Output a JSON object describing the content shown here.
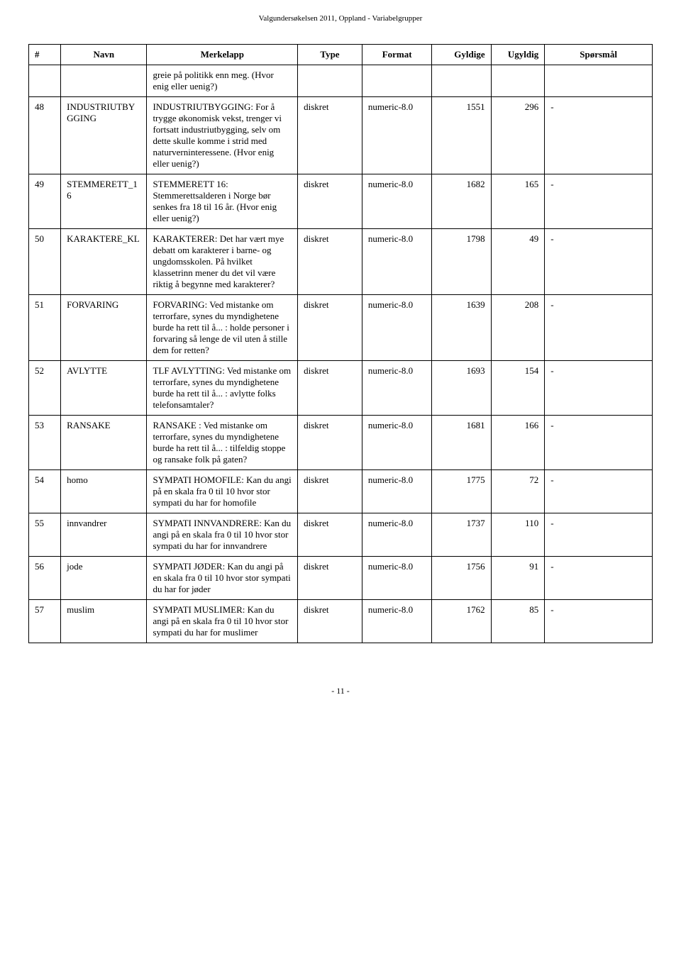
{
  "header": "Valgundersøkelsen 2011, Oppland - Variabelgrupper",
  "columns": {
    "num": "#",
    "navn": "Navn",
    "merkelapp": "Merkelapp",
    "type": "Type",
    "format": "Format",
    "gyldige": "Gyldige",
    "ugyldig": "Ugyldig",
    "sporsmal": "Spørsmål"
  },
  "rows": [
    {
      "num": "",
      "navn": "",
      "merk": "greie på politikk enn meg. (Hvor enig eller uenig?)",
      "type": "",
      "format": "",
      "gyldige": "",
      "ugyldig": "",
      "spors": ""
    },
    {
      "num": "48",
      "navn": "INDUSTRIUTBYGGING",
      "merk": "INDUSTRIUTBYGGING: For å trygge økonomisk vekst, trenger vi fortsatt industriutbygging, selv om dette skulle komme i strid med naturverninteressene. (Hvor enig eller uenig?)",
      "type": "diskret",
      "format": "numeric-8.0",
      "gyldige": "1551",
      "ugyldig": "296",
      "spors": "-"
    },
    {
      "num": "49",
      "navn": "STEMMERETT_16",
      "merk": "STEMMERETT 16: Stemmerettsalderen i Norge bør senkes fra 18 til 16 år. (Hvor enig eller uenig?)",
      "type": "diskret",
      "format": "numeric-8.0",
      "gyldige": "1682",
      "ugyldig": "165",
      "spors": "-"
    },
    {
      "num": "50",
      "navn": "KARAKTERE_KL",
      "merk": "KARAKTERER: Det har vært mye debatt om karakterer i barne- og ungdomsskolen. På hvilket klassetrinn mener du det vil være riktig å begynne med karakterer?",
      "type": "diskret",
      "format": "numeric-8.0",
      "gyldige": "1798",
      "ugyldig": "49",
      "spors": "-"
    },
    {
      "num": "51",
      "navn": "FORVARING",
      "merk": "FORVARING: Ved mistanke om terrorfare, synes du myndighetene burde ha rett til å... : holde personer i forvaring så lenge de vil uten å stille dem for retten?",
      "type": "diskret",
      "format": "numeric-8.0",
      "gyldige": "1639",
      "ugyldig": "208",
      "spors": "-"
    },
    {
      "num": "52",
      "navn": "AVLYTTE",
      "merk": "TLF AVLYTTING: Ved mistanke om terrorfare, synes du myndighetene burde ha rett til å... : avlytte folks telefonsamtaler?",
      "type": "diskret",
      "format": "numeric-8.0",
      "gyldige": "1693",
      "ugyldig": "154",
      "spors": "-"
    },
    {
      "num": "53",
      "navn": "RANSAKE",
      "merk": "RANSAKE : Ved mistanke om terrorfare, synes du myndighetene burde ha rett til å... : tilfeldig stoppe og ransake folk på gaten?",
      "type": "diskret",
      "format": "numeric-8.0",
      "gyldige": "1681",
      "ugyldig": "166",
      "spors": "-"
    },
    {
      "num": "54",
      "navn": "homo",
      "merk": "SYMPATI HOMOFILE: Kan du angi på en skala fra 0 til 10 hvor stor sympati du har for homofile",
      "type": "diskret",
      "format": "numeric-8.0",
      "gyldige": "1775",
      "ugyldig": "72",
      "spors": "-"
    },
    {
      "num": "55",
      "navn": "innvandrer",
      "merk": "SYMPATI INNVANDRERE: Kan du angi på en skala fra 0 til 10 hvor stor sympati du har for innvandrere",
      "type": "diskret",
      "format": "numeric-8.0",
      "gyldige": "1737",
      "ugyldig": "110",
      "spors": "-"
    },
    {
      "num": "56",
      "navn": "jode",
      "merk": "SYMPATI JØDER: Kan du angi på en skala fra 0 til 10 hvor stor sympati du har for jøder",
      "type": "diskret",
      "format": "numeric-8.0",
      "gyldige": "1756",
      "ugyldig": "91",
      "spors": "-"
    },
    {
      "num": "57",
      "navn": "muslim",
      "merk": "SYMPATI MUSLIMER: Kan du angi på en skala fra 0 til 10 hvor stor sympati du har for muslimer",
      "type": "diskret",
      "format": "numeric-8.0",
      "gyldige": "1762",
      "ugyldig": "85",
      "spors": "-"
    }
  ],
  "footer": "- 11 -"
}
